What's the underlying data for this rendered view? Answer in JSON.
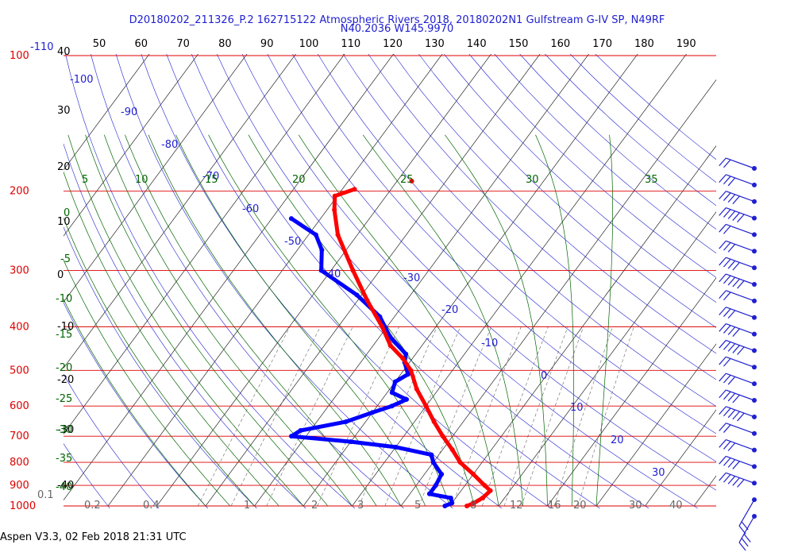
{
  "title_line1": "D20180202_211326_P.2 162715122 Atmospheric Rivers 2018, 20180202N1 Gulfstream G-IV SP, N49RF",
  "title_line2": "N40.2036 W145.9970",
  "footer": "Aspen V3.3, 02 Feb 2018  21:31 UTC",
  "colors": {
    "isobar": "#dd0000",
    "isotherm": "#000000",
    "dry_adiabat": "#2020d0",
    "saturated_adiabat": "#006600",
    "mixing_ratio": "#666666",
    "temperature": "#ff0000",
    "dewpoint": "#0000ff"
  },
  "chart_data": {
    "type": "skew-t",
    "xlabel": "",
    "ylabel": "",
    "pressure_labels": [
      "100",
      "200",
      "300",
      "400",
      "500",
      "600",
      "700",
      "800",
      "900",
      "1000"
    ],
    "pressure_values": [
      100,
      200,
      300,
      400,
      500,
      600,
      700,
      800,
      900,
      1000
    ],
    "top_scale_labels": [
      "50",
      "60",
      "70",
      "80",
      "90",
      "100",
      "110",
      "120",
      "130",
      "140",
      "150",
      "160",
      "170",
      "180",
      "190"
    ],
    "isotherm_labels_left": [
      "40",
      "30",
      "20",
      "10",
      "0",
      "-10",
      "-20",
      "-30",
      "-40"
    ],
    "isotherm_values": [
      40,
      30,
      20,
      10,
      0,
      -10,
      -20,
      -30,
      -40
    ],
    "dry_adiabat_labels": [
      "-110",
      "-100",
      "-90",
      "-80",
      "-70",
      "-60",
      "-50",
      "-40",
      "-30",
      "-20",
      "-10",
      "0",
      "10",
      "20",
      "30"
    ],
    "saturated_adiabat_labels": [
      "5",
      "10",
      "15",
      "20",
      "25",
      "30",
      "35",
      "0",
      "-5",
      "-10",
      "-15",
      "-20",
      "-25",
      "-30",
      "-35",
      "-40"
    ],
    "mixing_ratio_labels": [
      "0.1",
      "0.2",
      "0.4",
      "1",
      "2",
      "3",
      "5",
      "8",
      "12",
      "16",
      "20",
      "30",
      "40"
    ],
    "temperature_profile": [
      {
        "p": 1000,
        "t": 13.5
      },
      {
        "p": 985,
        "t": 14.5
      },
      {
        "p": 960,
        "t": 15.5
      },
      {
        "p": 925,
        "t": 16.0
      },
      {
        "p": 900,
        "t": 14.0
      },
      {
        "p": 850,
        "t": 10.0
      },
      {
        "p": 800,
        "t": 5.5
      },
      {
        "p": 750,
        "t": 2.0
      },
      {
        "p": 700,
        "t": -2.0
      },
      {
        "p": 650,
        "t": -6.0
      },
      {
        "p": 600,
        "t": -10.0
      },
      {
        "p": 550,
        "t": -14.5
      },
      {
        "p": 500,
        "t": -18.5
      },
      {
        "p": 470,
        "t": -22.0
      },
      {
        "p": 440,
        "t": -26.5
      },
      {
        "p": 400,
        "t": -31.0
      },
      {
        "p": 350,
        "t": -38.0
      },
      {
        "p": 300,
        "t": -45.5
      },
      {
        "p": 250,
        "t": -54.0
      },
      {
        "p": 220,
        "t": -58.5
      },
      {
        "p": 205,
        "t": -60.5
      },
      {
        "p": 198,
        "t": -57.5
      }
    ],
    "dewpoint_profile": [
      {
        "p": 1000,
        "td": 9.0
      },
      {
        "p": 985,
        "td": 10.0
      },
      {
        "p": 960,
        "td": 9.0
      },
      {
        "p": 940,
        "td": 4.0
      },
      {
        "p": 900,
        "td": 4.0
      },
      {
        "p": 850,
        "td": 3.5
      },
      {
        "p": 800,
        "td": 0.0
      },
      {
        "p": 770,
        "td": -1.5
      },
      {
        "p": 740,
        "td": -10.0
      },
      {
        "p": 720,
        "td": -20.0
      },
      {
        "p": 700,
        "td": -33.0
      },
      {
        "p": 680,
        "td": -32.0
      },
      {
        "p": 650,
        "td": -24.0
      },
      {
        "p": 620,
        "td": -20.0
      },
      {
        "p": 600,
        "td": -17.0
      },
      {
        "p": 580,
        "td": -15.0
      },
      {
        "p": 560,
        "td": -19.0
      },
      {
        "p": 530,
        "td": -20.0
      },
      {
        "p": 510,
        "td": -18.5
      },
      {
        "p": 480,
        "td": -21.0
      },
      {
        "p": 460,
        "td": -22.0
      },
      {
        "p": 420,
        "td": -28.0
      },
      {
        "p": 380,
        "td": -33.0
      },
      {
        "p": 340,
        "td": -41.0
      },
      {
        "p": 300,
        "td": -52.0
      },
      {
        "p": 270,
        "td": -55.0
      },
      {
        "p": 250,
        "td": -58.5
      },
      {
        "p": 230,
        "td": -66.0
      }
    ],
    "isolated_point": {
      "p": 190,
      "t": -47.0
    },
    "wind_barb_count": 22,
    "grid": true
  }
}
